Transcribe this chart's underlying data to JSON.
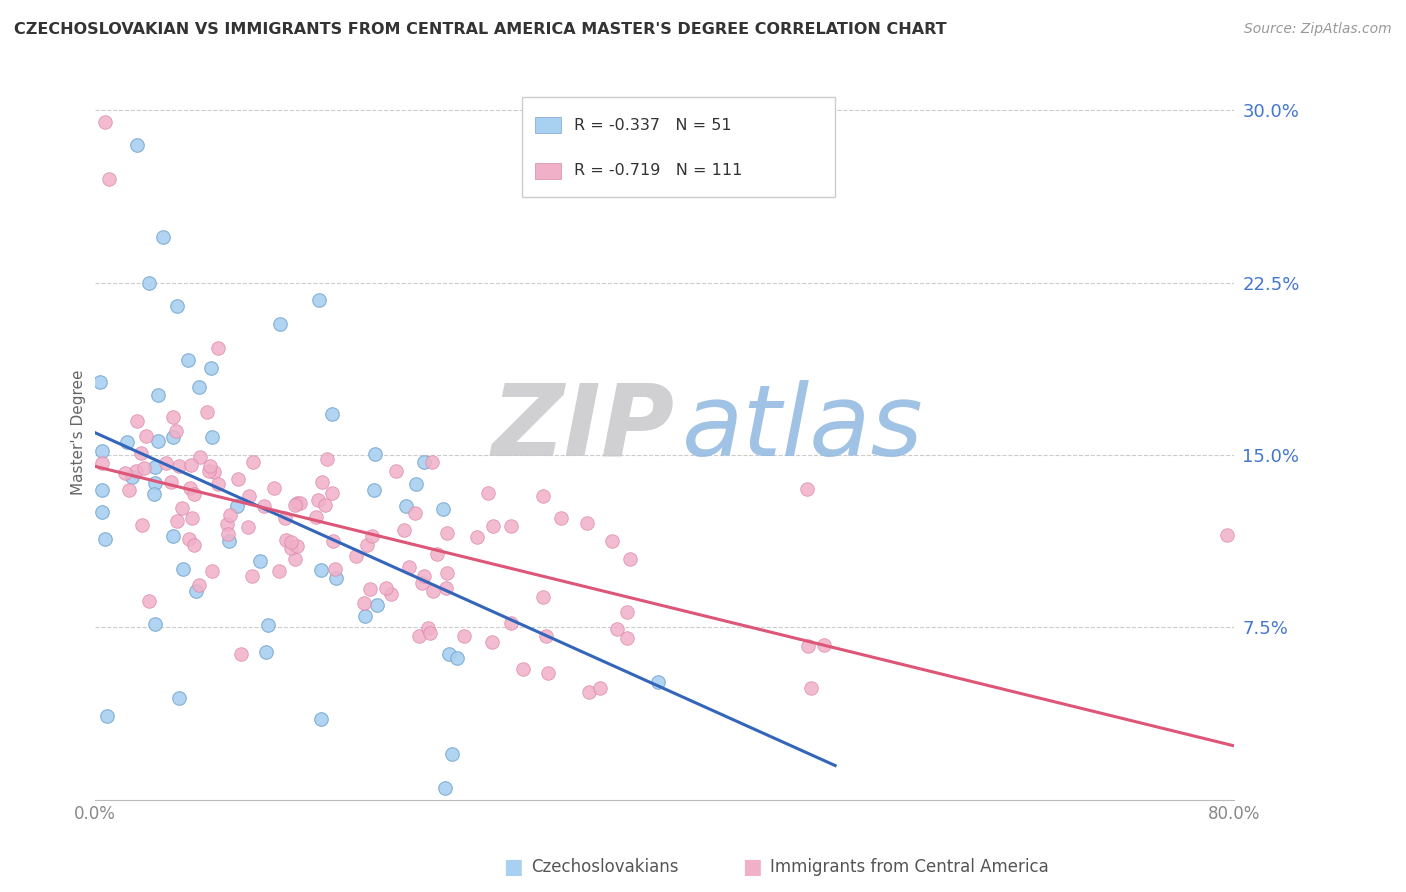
{
  "title": "CZECHOSLOVAKIAN VS IMMIGRANTS FROM CENTRAL AMERICA MASTER'S DEGREE CORRELATION CHART",
  "source": "Source: ZipAtlas.com",
  "ylabel": "Master's Degree",
  "ytick_labels": [
    "",
    "7.5%",
    "15.0%",
    "22.5%",
    "30.0%"
  ],
  "ytick_vals": [
    0.0,
    0.075,
    0.15,
    0.225,
    0.3
  ],
  "xlim": [
    0.0,
    0.8
  ],
  "ylim": [
    0.0,
    0.32
  ],
  "watermark_ZIP": "ZIP",
  "watermark_atlas": "atlas",
  "legend_R_blue": "-0.337",
  "legend_N_blue": "51",
  "legend_R_pink": "-0.719",
  "legend_N_pink": "111",
  "legend_label_blue": "Czechoslovakians",
  "legend_label_pink": "Immigrants from Central America",
  "blue_color": "#a8d0f0",
  "pink_color": "#f0b0c8",
  "blue_line_color": "#3366bb",
  "pink_line_color": "#dd5577",
  "grid_color": "#cccccc",
  "axis_color": "#aaaaaa",
  "title_color": "#333333",
  "tick_color": "#4477cc",
  "source_color": "#999999",
  "ylabel_color": "#666666"
}
